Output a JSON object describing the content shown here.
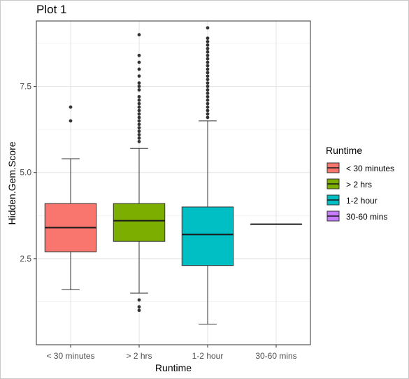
{
  "chart_data": {
    "type": "box",
    "title": "Plot 1",
    "xlabel": "Runtime",
    "ylabel": "Hidden.Gem.Score",
    "ylim": [
      0.0,
      9.4
    ],
    "yticks": [
      2.5,
      5.0,
      7.5
    ],
    "ytick_labels": [
      "2.5",
      "5.0",
      "7.5"
    ],
    "grid": true,
    "legend": {
      "title": "Runtime",
      "position": "right"
    },
    "categories": [
      "< 30 minutes",
      "> 2 hrs",
      "1-2 hour",
      "30-60 mins"
    ],
    "boxes": [
      {
        "category": "< 30 minutes",
        "color": "#F8766D",
        "whisker_low": 1.6,
        "q1": 2.7,
        "median": 3.4,
        "q3": 4.1,
        "whisker_high": 5.4,
        "outliers": [
          6.5,
          6.9
        ]
      },
      {
        "category": "> 2 hrs",
        "color": "#7CAE00",
        "whisker_low": 1.5,
        "q1": 3.0,
        "median": 3.6,
        "q3": 4.1,
        "whisker_high": 5.7,
        "outliers": [
          1.0,
          1.1,
          1.3,
          5.9,
          6.0,
          6.1,
          6.2,
          6.3,
          6.4,
          6.5,
          6.6,
          6.7,
          6.8,
          6.9,
          7.0,
          7.1,
          7.2,
          7.4,
          7.5,
          7.6,
          7.8,
          8.0,
          8.2,
          8.4,
          9.0
        ]
      },
      {
        "category": "1-2 hour",
        "color": "#00BFC4",
        "whisker_low": 0.6,
        "q1": 2.3,
        "median": 3.2,
        "q3": 4.0,
        "whisker_high": 6.5,
        "outliers": [
          6.6,
          6.7,
          6.8,
          6.9,
          7.0,
          7.1,
          7.2,
          7.3,
          7.4,
          7.5,
          7.6,
          7.7,
          7.8,
          7.9,
          8.0,
          8.1,
          8.2,
          8.3,
          8.4,
          8.5,
          8.6,
          8.7,
          8.8,
          8.9,
          9.2
        ]
      },
      {
        "category": "30-60 mins",
        "color": "#C77CFF",
        "whisker_low": 3.5,
        "q1": 3.5,
        "median": 3.5,
        "q3": 3.5,
        "whisker_high": 3.5,
        "outliers": []
      }
    ]
  }
}
